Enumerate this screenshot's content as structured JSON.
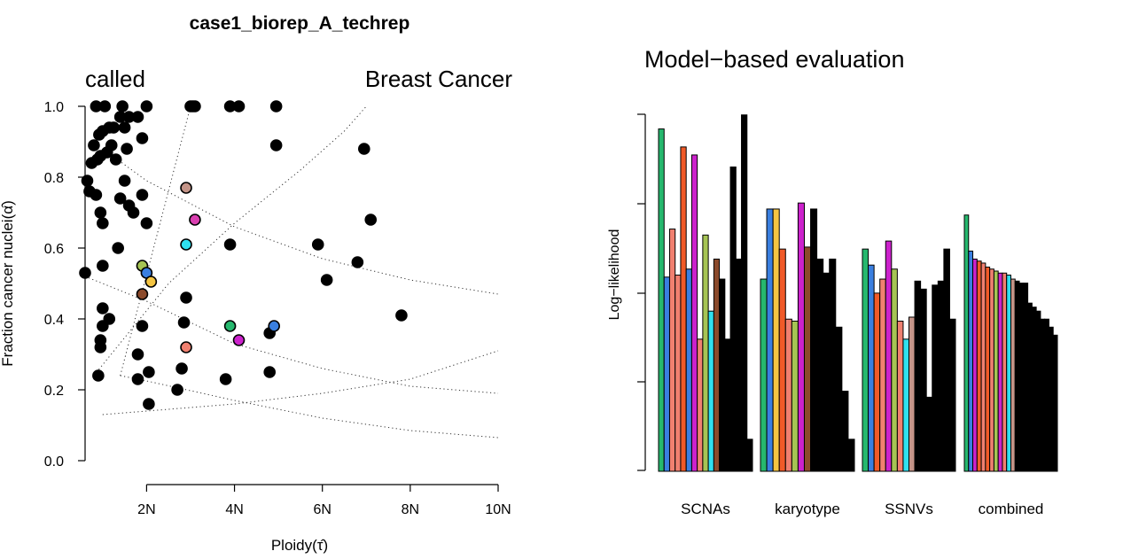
{
  "chart_data": [
    {
      "type": "scatter",
      "title": "case1_biorep_A_techrep",
      "corner_labels": {
        "left": "called",
        "right": "Breast Cancer"
      },
      "xlabel": "Ploidy(τ̂)",
      "ylabel": "Fraction cancer nuclei(α̂)",
      "xlim": [
        0.6,
        10
      ],
      "ylim": [
        0,
        1
      ],
      "x_ticks": [
        2,
        4,
        6,
        8,
        10
      ],
      "x_tick_labels": [
        "2N",
        "4N",
        "6N",
        "8N",
        "10N"
      ],
      "y_ticks": [
        0,
        0.2,
        0.4,
        0.6,
        0.8,
        1.0
      ],
      "y_tick_labels": [
        "0.0",
        "0.2",
        "0.4",
        "0.6",
        "0.8",
        "1.0"
      ],
      "grid": false,
      "guide_curves": [
        {
          "style": "dotted",
          "x": [
            1.4,
            3.0
          ],
          "y": [
            0.24,
            1.0
          ]
        },
        {
          "style": "dotted",
          "x": [
            0.8,
            2.5,
            4.0,
            5.5,
            6.5,
            7.0
          ],
          "y": [
            0.24,
            0.5,
            0.67,
            0.82,
            0.93,
            1.0
          ]
        },
        {
          "style": "dotted",
          "x": [
            1.0,
            2.0,
            4.0,
            6.0,
            8.0,
            10.0
          ],
          "y": [
            0.88,
            0.79,
            0.66,
            0.57,
            0.51,
            0.47
          ]
        },
        {
          "style": "dotted",
          "x": [
            0.6,
            2.0,
            4.0,
            6.0,
            8.0,
            10.0
          ],
          "y": [
            0.52,
            0.45,
            0.33,
            0.26,
            0.21,
            0.19
          ]
        },
        {
          "style": "dotted",
          "x": [
            1.0,
            2.0,
            4.0,
            6.0,
            8.0,
            10.0
          ],
          "y": [
            0.13,
            0.14,
            0.16,
            0.19,
            0.23,
            0.31
          ]
        },
        {
          "style": "dotted",
          "x": [
            1.4,
            2.0,
            4.0,
            6.0,
            8.0,
            10.0
          ],
          "y": [
            0.24,
            0.225,
            0.17,
            0.12,
            0.085,
            0.065
          ]
        }
      ],
      "points_black": [
        [
          0.6,
          0.53
        ],
        [
          0.65,
          0.79
        ],
        [
          0.7,
          0.76
        ],
        [
          0.75,
          0.84
        ],
        [
          0.8,
          0.89
        ],
        [
          0.85,
          1.0
        ],
        [
          0.88,
          0.85
        ],
        [
          0.92,
          0.92
        ],
        [
          0.95,
          0.86
        ],
        [
          1.0,
          0.93
        ],
        [
          1.05,
          1.0
        ],
        [
          1.1,
          0.87
        ],
        [
          1.15,
          0.94
        ],
        [
          1.2,
          0.89
        ],
        [
          1.25,
          0.94
        ],
        [
          1.3,
          0.85
        ],
        [
          1.4,
          0.97
        ],
        [
          1.45,
          1.0
        ],
        [
          1.5,
          0.94
        ],
        [
          1.55,
          0.88
        ],
        [
          1.6,
          0.97
        ],
        [
          1.8,
          0.97
        ],
        [
          1.9,
          0.91
        ],
        [
          2.0,
          1.0
        ],
        [
          1.4,
          0.74
        ],
        [
          0.85,
          0.75
        ],
        [
          0.95,
          0.7
        ],
        [
          1.0,
          0.67
        ],
        [
          1.5,
          0.79
        ],
        [
          1.6,
          0.72
        ],
        [
          1.7,
          0.7
        ],
        [
          1.9,
          0.75
        ],
        [
          2.0,
          0.67
        ],
        [
          1.35,
          0.6
        ],
        [
          1.0,
          0.55
        ],
        [
          1.0,
          0.43
        ],
        [
          1.15,
          0.4
        ],
        [
          1.0,
          0.38
        ],
        [
          0.95,
          0.34
        ],
        [
          0.95,
          0.32
        ],
        [
          0.9,
          0.24
        ],
        [
          1.9,
          0.38
        ],
        [
          1.8,
          0.3
        ],
        [
          1.8,
          0.23
        ],
        [
          2.05,
          0.25
        ],
        [
          2.05,
          0.16
        ],
        [
          2.7,
          0.2
        ],
        [
          2.8,
          0.26
        ],
        [
          2.85,
          0.39
        ],
        [
          2.9,
          0.46
        ],
        [
          3.0,
          1.0
        ],
        [
          3.05,
          1.0
        ],
        [
          3.1,
          1.0
        ],
        [
          3.9,
          1.0
        ],
        [
          4.1,
          1.0
        ],
        [
          4.95,
          1.0
        ],
        [
          4.95,
          0.89
        ],
        [
          3.9,
          0.61
        ],
        [
          3.8,
          0.23
        ],
        [
          4.8,
          0.25
        ],
        [
          4.8,
          0.36
        ],
        [
          5.9,
          0.61
        ],
        [
          6.1,
          0.51
        ],
        [
          6.8,
          0.56
        ],
        [
          6.95,
          0.88
        ],
        [
          7.1,
          0.68
        ],
        [
          7.8,
          0.41
        ]
      ],
      "points_colored": [
        {
          "x": 1.9,
          "y": 0.55,
          "color": "#a6c454"
        },
        {
          "x": 2.0,
          "y": 0.53,
          "color": "#3a7fe0"
        },
        {
          "x": 2.1,
          "y": 0.505,
          "color": "#f5c542"
        },
        {
          "x": 1.9,
          "y": 0.47,
          "color": "#8b4a2b"
        },
        {
          "x": 2.9,
          "y": 0.77,
          "color": "#c49488"
        },
        {
          "x": 3.1,
          "y": 0.68,
          "color": "#d93fb0"
        },
        {
          "x": 2.9,
          "y": 0.61,
          "color": "#2fe0ef"
        },
        {
          "x": 2.9,
          "y": 0.32,
          "color": "#f08070"
        },
        {
          "x": 3.9,
          "y": 0.38,
          "color": "#26b86e"
        },
        {
          "x": 4.1,
          "y": 0.34,
          "color": "#cc22cc"
        },
        {
          "x": 4.9,
          "y": 0.38,
          "color": "#3a7fe0"
        }
      ]
    },
    {
      "type": "bar",
      "title": "Model−based evaluation",
      "ylabel": "Log−likelihood",
      "y_ticks_visible": true,
      "y_tick_labels": [],
      "ylim": [
        0,
        1
      ],
      "groups": [
        {
          "label": "SCNAs",
          "colors": [
            "#26b86e",
            "#3a7fe0",
            "#f08070",
            "#f08070",
            "#f05a28",
            "#3a7fe0",
            "#cc22cc",
            "#f08070",
            "#a6c454",
            "#2fe0ef",
            "#8b4a2b",
            "#000000",
            "#000000",
            "#000000",
            "#000000",
            "#000000",
            "#000000"
          ],
          "values": [
            0.855,
            0.485,
            0.605,
            0.49,
            0.81,
            0.505,
            0.79,
            0.33,
            0.59,
            0.4,
            0.53,
            0.48,
            0.33,
            0.76,
            0.53,
            0.89,
            0.08
          ]
        },
        {
          "label": "karyotype",
          "colors": [
            "#26b86e",
            "#3a7fe0",
            "#f5c542",
            "#f05a28",
            "#f08070",
            "#a6c454",
            "#cc22cc",
            "#8b4a2b",
            "#000000",
            "#000000",
            "#000000",
            "#000000",
            "#000000",
            "#000000",
            "#000000"
          ],
          "values": [
            0.48,
            0.655,
            0.655,
            0.555,
            0.38,
            0.375,
            0.67,
            0.56,
            0.655,
            0.53,
            0.495,
            0.53,
            0.36,
            0.2,
            0.08
          ]
        },
        {
          "label": "SSNVs",
          "colors": [
            "#26b86e",
            "#3a7fe0",
            "#f05a28",
            "#f08070",
            "#cc22cc",
            "#a6c454",
            "#f08070",
            "#2fe0ef",
            "#c49488",
            "#000000",
            "#000000",
            "#000000",
            "#000000",
            "#000000",
            "#000000",
            "#000000"
          ],
          "values": [
            0.555,
            0.515,
            0.445,
            0.48,
            0.575,
            0.505,
            0.375,
            0.33,
            0.385,
            0.475,
            0.455,
            0.185,
            0.465,
            0.475,
            0.555,
            0.38
          ]
        },
        {
          "label": "combined",
          "colors": [
            "#26b86e",
            "#3a7fe0",
            "#cc22cc",
            "#f05a28",
            "#f08070",
            "#f05a28",
            "#f08070",
            "#a6c454",
            "#cc22cc",
            "#f08070",
            "#2fe0ef",
            "#c49488",
            "#000000",
            "#000000",
            "#000000",
            "#000000",
            "#000000",
            "#000000",
            "#000000",
            "#000000",
            "#000000",
            "#000000"
          ],
          "values": [
            0.64,
            0.55,
            0.53,
            0.525,
            0.52,
            0.51,
            0.505,
            0.5,
            0.495,
            0.495,
            0.49,
            0.48,
            0.475,
            0.47,
            0.47,
            0.42,
            0.41,
            0.4,
            0.38,
            0.38,
            0.36,
            0.34
          ]
        }
      ]
    }
  ]
}
